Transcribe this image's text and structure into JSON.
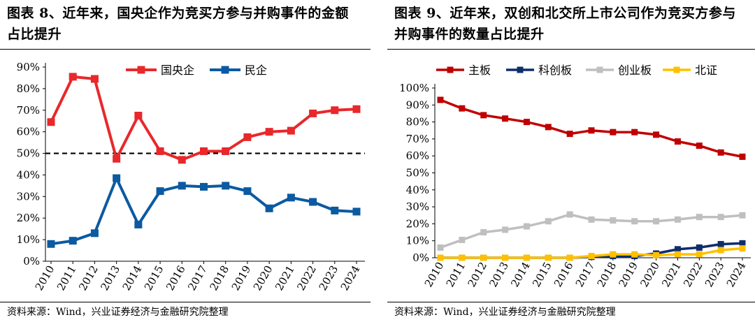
{
  "charts": [
    {
      "title": "图表 8、近年来，国央企作为竞买方参与并购事件的金额占比提升",
      "source": "资料来源：Wind，兴业证券经济与金融研究院整理"
    },
    {
      "title": "图表 9、近年来，双创和北交所上市公司作为竞买方参与并购事件的数量占比提升",
      "source": "资料来源：Wind，兴业证券经济与金融研究院整理"
    }
  ],
  "chart_data": [
    {
      "type": "line",
      "title": "图表 8、近年来，国央企作为竞买方参与并购事件的金额占比提升",
      "x": [
        "2010",
        "2011",
        "2012",
        "2013",
        "2014",
        "2015",
        "2016",
        "2017",
        "2018",
        "2019",
        "2020",
        "2021",
        "2022",
        "2023",
        "2024"
      ],
      "y_ticks": [
        "0%",
        "10%",
        "20%",
        "30%",
        "40%",
        "50%",
        "60%",
        "70%",
        "80%",
        "90%"
      ],
      "ylim": [
        0,
        90
      ],
      "y_unit": "%",
      "reference_line": {
        "value": 50,
        "style": "dashed",
        "color": "#000000"
      },
      "legend_position": "top-right",
      "grid": false,
      "series": [
        {
          "name": "国央企",
          "color": "#E8282B",
          "values": [
            64.5,
            85.5,
            84.5,
            47.5,
            67.5,
            51,
            47,
            51,
            51,
            57.5,
            60,
            60.5,
            68.5,
            70,
            70.5
          ]
        },
        {
          "name": "民企",
          "color": "#0B5AA2",
          "values": [
            8,
            9.5,
            13,
            38.5,
            17,
            32.5,
            35,
            34.5,
            35,
            32.5,
            24.5,
            29.5,
            27.5,
            23.5,
            23
          ]
        }
      ]
    },
    {
      "type": "line",
      "title": "图表 9、近年来，双创和北交所上市公司作为竞买方参与并购事件的数量占比提升",
      "x": [
        "2010",
        "2011",
        "2012",
        "2013",
        "2014",
        "2015",
        "2016",
        "2017",
        "2018",
        "2019",
        "2020",
        "2021",
        "2022",
        "2023",
        "2024"
      ],
      "y_ticks": [
        "0%",
        "10%",
        "20%",
        "30%",
        "40%",
        "50%",
        "60%",
        "70%",
        "80%",
        "90%",
        "100%"
      ],
      "ylim": [
        0,
        100
      ],
      "y_unit": "%",
      "legend_position": "top",
      "grid": false,
      "series": [
        {
          "name": "主板",
          "color": "#C00000",
          "values": [
            93,
            88,
            84,
            82,
            80,
            77,
            73,
            75,
            74,
            74,
            72.5,
            68.5,
            66,
            62,
            59.5
          ]
        },
        {
          "name": "科创板",
          "color": "#0F2D6B",
          "values": [
            0,
            0,
            0,
            0,
            0,
            0,
            0,
            0.5,
            1,
            1,
            2.5,
            5,
            6,
            8,
            8.5
          ]
        },
        {
          "name": "创业板",
          "color": "#BFBFBF",
          "values": [
            6,
            10.5,
            15,
            16.5,
            18.5,
            21.5,
            25.5,
            22.5,
            22,
            21.5,
            21.5,
            22.5,
            24,
            24,
            25
          ]
        },
        {
          "name": "北证",
          "color": "#FFC000",
          "values": [
            0,
            0,
            0,
            0,
            0,
            0,
            0,
            1,
            2,
            2,
            1.5,
            2,
            2,
            4.5,
            5.5
          ]
        }
      ]
    }
  ]
}
